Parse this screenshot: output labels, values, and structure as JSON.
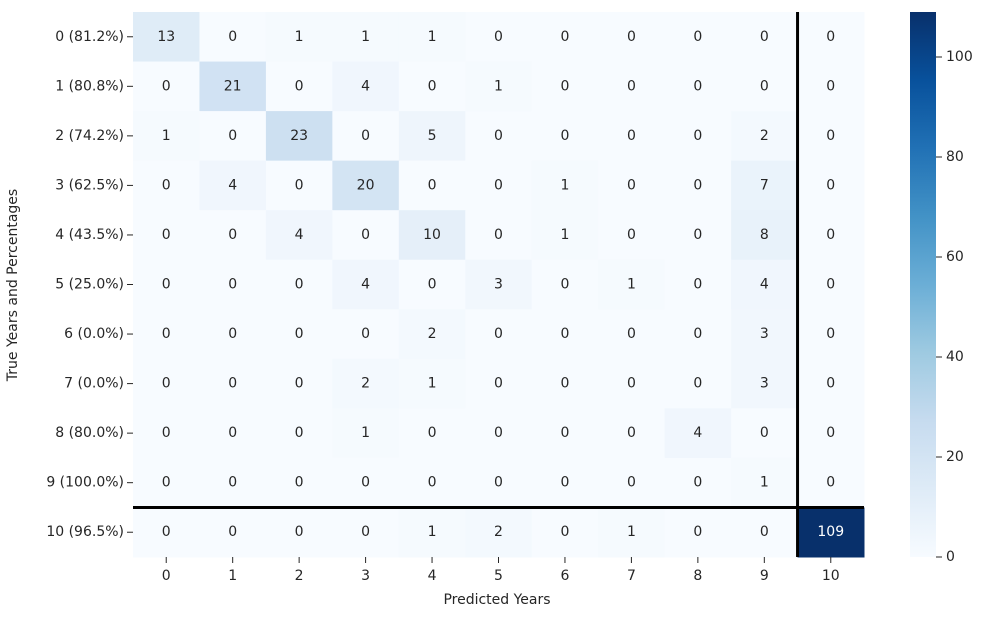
{
  "chart_data": {
    "type": "heatmap",
    "xlabel": "Predicted Years",
    "ylabel": "True Years and Percentages",
    "x_categories": [
      "0",
      "1",
      "2",
      "3",
      "4",
      "5",
      "6",
      "7",
      "8",
      "9",
      "10"
    ],
    "y_categories": [
      "0 (81.2%)",
      "1 (80.8%)",
      "2 (74.2%)",
      "3 (62.5%)",
      "4 (43.5%)",
      "5 (25.0%)",
      "6 (0.0%)",
      "7 (0.0%)",
      "8 (80.0%)",
      "9 (100.0%)",
      "10 (96.5%)"
    ],
    "values": [
      [
        13,
        0,
        1,
        1,
        1,
        0,
        0,
        0,
        0,
        0,
        0
      ],
      [
        0,
        21,
        0,
        4,
        0,
        1,
        0,
        0,
        0,
        0,
        0
      ],
      [
        1,
        0,
        23,
        0,
        5,
        0,
        0,
        0,
        0,
        2,
        0
      ],
      [
        0,
        4,
        0,
        20,
        0,
        0,
        1,
        0,
        0,
        7,
        0
      ],
      [
        0,
        0,
        4,
        0,
        10,
        0,
        1,
        0,
        0,
        8,
        0
      ],
      [
        0,
        0,
        0,
        4,
        0,
        3,
        0,
        1,
        0,
        4,
        0
      ],
      [
        0,
        0,
        0,
        0,
        2,
        0,
        0,
        0,
        0,
        3,
        0
      ],
      [
        0,
        0,
        0,
        2,
        1,
        0,
        0,
        0,
        0,
        3,
        0
      ],
      [
        0,
        0,
        0,
        1,
        0,
        0,
        0,
        0,
        4,
        0,
        0
      ],
      [
        0,
        0,
        0,
        0,
        0,
        0,
        0,
        0,
        0,
        1,
        0
      ],
      [
        0,
        0,
        0,
        0,
        1,
        2,
        0,
        1,
        0,
        0,
        109
      ]
    ],
    "colormap": [
      "#f7fbff",
      "#deebf7",
      "#c6dbef",
      "#9ecae1",
      "#6baed6",
      "#4292c6",
      "#2171b5",
      "#08519c",
      "#08306b"
    ],
    "zlim": [
      0,
      109
    ],
    "zticks": [
      0,
      20,
      40,
      60,
      80,
      100
    ]
  }
}
